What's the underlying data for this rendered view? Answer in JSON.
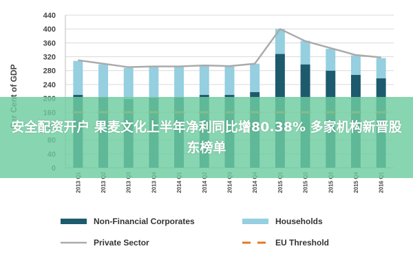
{
  "banner": {
    "text": "安全配资开户 果麦文化上半年净利同比增80.38% 多家机构新晋股东榜单"
  },
  "colors": {
    "non_financial": "#1d5a6e",
    "households": "#95cfe0",
    "private_sector": "#aaaaaa",
    "threshold": "#e0782a",
    "grid": "#d9d9d9",
    "banner": "#6ecda0"
  },
  "chart_data": {
    "type": "bar",
    "stacked": true,
    "title": "",
    "xlabel": "",
    "ylabel": "Per Cent of GDP",
    "ylim": [
      0,
      440
    ],
    "yticks": [
      0,
      40,
      80,
      120,
      160,
      200,
      240,
      280,
      320,
      360,
      400,
      440
    ],
    "grid": true,
    "legend_position": "bottom",
    "categories": [
      "2013 Q1",
      "2013 Q2",
      "2013 Q3",
      "2013 Q4",
      "2014 Q1",
      "2014 Q2",
      "2014 Q3",
      "2014 Q4",
      "2015 Q1",
      "2015 Q2",
      "2015 Q3",
      "2015 Q4",
      "2016 Q1"
    ],
    "series": [
      {
        "name": "Non-Financial Corporates",
        "type": "bar",
        "color_key": "non_financial",
        "values": [
          210,
          203,
          198,
          202,
          203,
          210,
          210,
          218,
          328,
          298,
          280,
          268,
          258
        ]
      },
      {
        "name": "Households",
        "type": "bar",
        "color_key": "households",
        "values": [
          98,
          95,
          90,
          90,
          88,
          85,
          82,
          82,
          72,
          68,
          63,
          56,
          58
        ]
      },
      {
        "name": "Private Sector",
        "type": "line",
        "color_key": "private_sector",
        "values": [
          310,
          300,
          290,
          292,
          292,
          295,
          293,
          300,
          400,
          365,
          345,
          325,
          318
        ]
      },
      {
        "name": "EU Threshold",
        "type": "dashed-line",
        "color_key": "threshold",
        "values": [
          160,
          160,
          160,
          160,
          160,
          160,
          160,
          160,
          160,
          160,
          160,
          160,
          160
        ]
      }
    ]
  }
}
